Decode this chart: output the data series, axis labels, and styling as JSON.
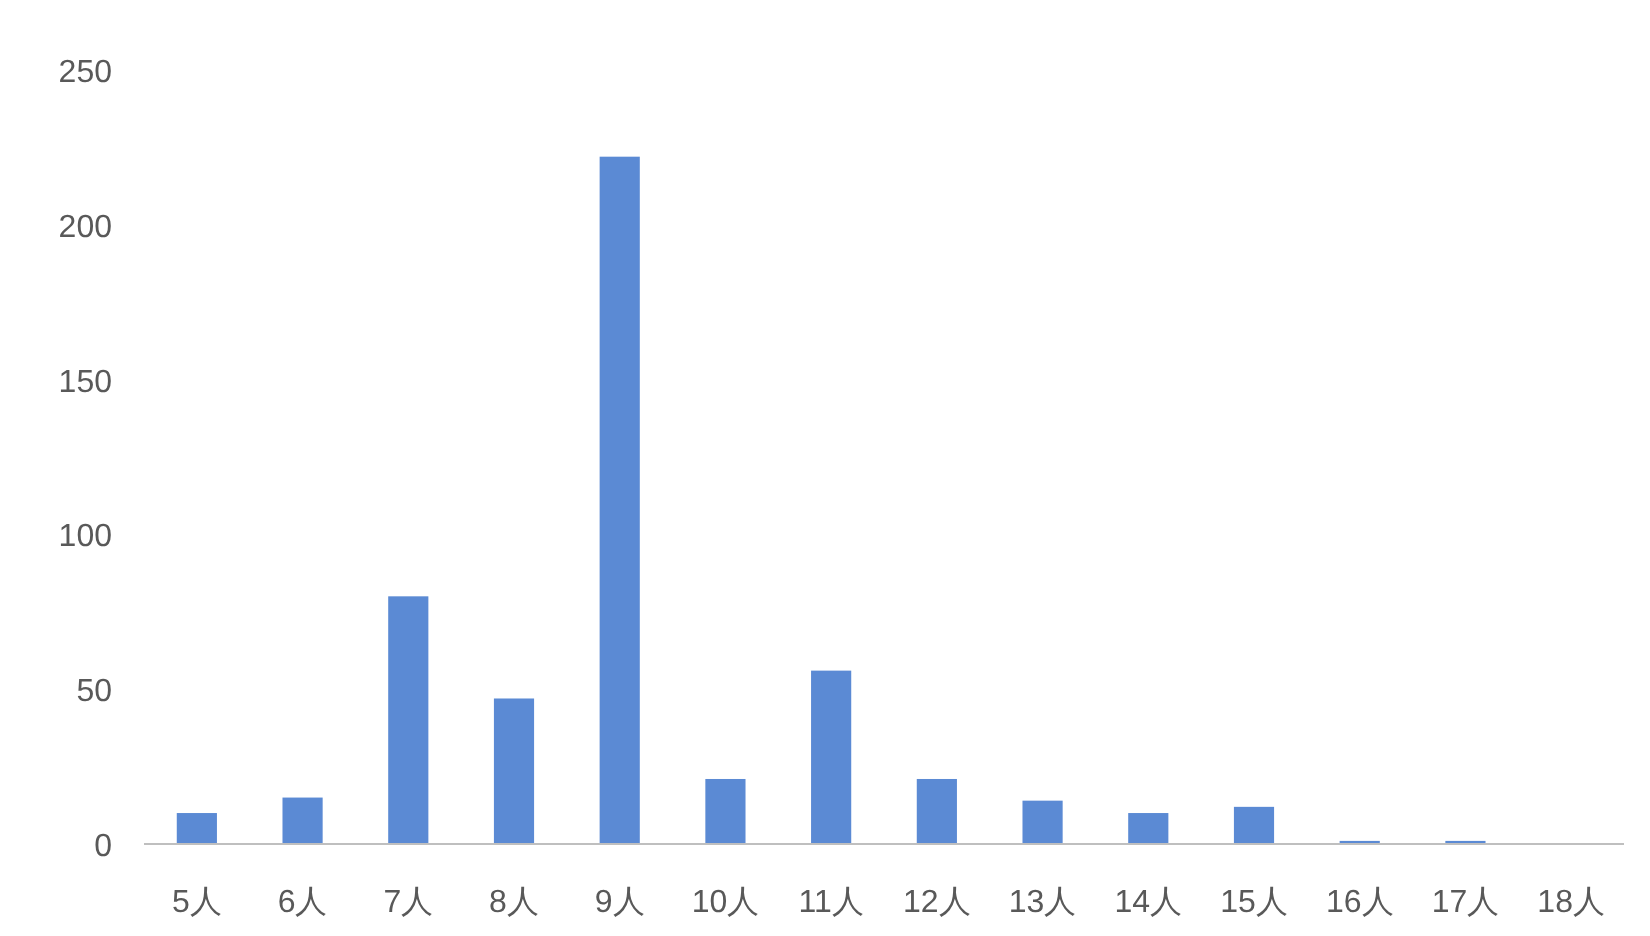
{
  "chart_data": {
    "type": "bar",
    "categories": [
      "5人",
      "6人",
      "7人",
      "8人",
      "9人",
      "10人",
      "11人",
      "12人",
      "13人",
      "14人",
      "15人",
      "16人",
      "17人",
      "18人"
    ],
    "values": [
      10,
      15,
      80,
      47,
      222,
      21,
      56,
      21,
      14,
      10,
      12,
      1,
      1,
      0
    ],
    "color": "#5b8ad4",
    "ylim": [
      0,
      250
    ],
    "yticks": [
      0,
      50,
      100,
      150,
      200,
      250
    ],
    "grid": false
  }
}
